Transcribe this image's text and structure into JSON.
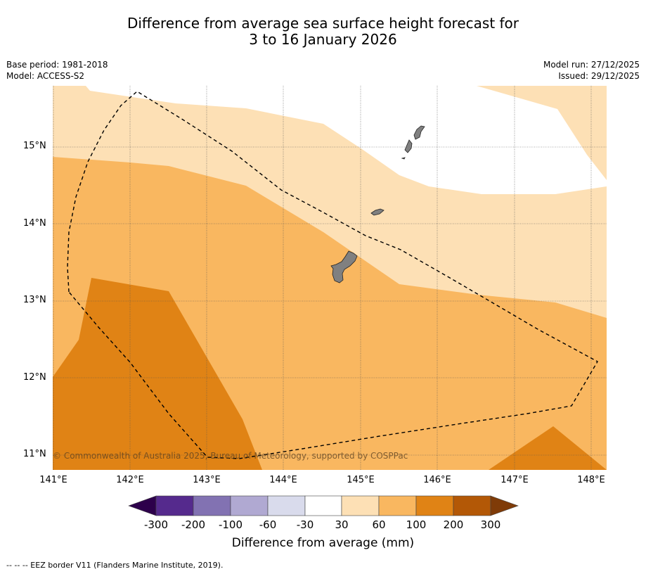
{
  "title": {
    "line1": "Difference from average sea surface height forecast for",
    "line2": "3 to 16 January 2026"
  },
  "meta_left": {
    "base_period": "Base period: 1981-2018",
    "model": "Model: ACCESS-S2"
  },
  "meta_right": {
    "model_run": "Model run: 27/12/2025",
    "issued": "Issued: 29/12/2025"
  },
  "map": {
    "lat_labels": [
      "15°N",
      "14°N",
      "13°N",
      "12°N",
      "11°N"
    ],
    "lon_labels": [
      "141°E",
      "142°E",
      "143°E",
      "144°E",
      "145°E",
      "146°E",
      "147°E",
      "148°E"
    ],
    "copyright": "© Commonwealth of Australia 2025, Bureau of Meteorology, supported by COSPPac",
    "legend_line": "--  --  -- EEZ border V11 (Flanders Marine Institute, 2019).",
    "region_colors": {
      "30_to_60": "#fde0b5",
      "60_to_100": "#f9b760",
      "100_to_200": "#e08315",
      "land": "#808080"
    }
  },
  "colorbar": {
    "title": "Difference from average (mm)",
    "ticks": [
      "-300",
      "-200",
      "-100",
      "-60",
      "-30",
      "30",
      "60",
      "100",
      "200",
      "300"
    ],
    "colors": [
      "#552a8d",
      "#8272b2",
      "#b0a9d2",
      "#d9dbec",
      "#ffffff",
      "#fde0b5",
      "#f9b760",
      "#e08315",
      "#b35806"
    ],
    "under_color": "#2d004b",
    "over_color": "#7f3b08"
  }
}
